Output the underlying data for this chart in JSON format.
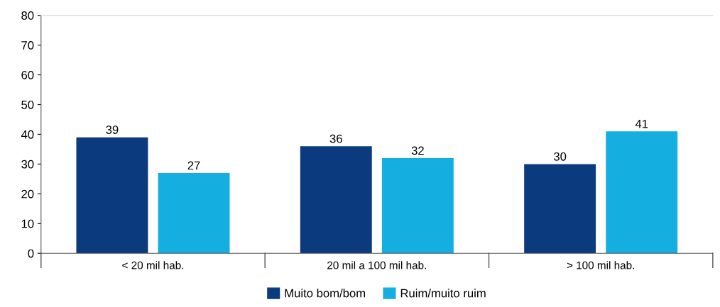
{
  "chart_data": {
    "type": "bar",
    "categories": [
      "< 20 mil hab.",
      "20 mil a 100 mil hab.",
      "> 100 mil hab."
    ],
    "series": [
      {
        "name": "Muito bom/bom",
        "color": "#0b3a7e",
        "values": [
          39,
          36,
          30
        ]
      },
      {
        "name": "Ruim/muito ruim",
        "color": "#15aee0",
        "values": [
          27,
          32,
          41
        ]
      }
    ],
    "ylim": [
      0,
      80
    ],
    "yticks": [
      0,
      10,
      20,
      30,
      40,
      50,
      60,
      70,
      80
    ],
    "data_labels": true,
    "legend": "bottom",
    "grid": false
  }
}
